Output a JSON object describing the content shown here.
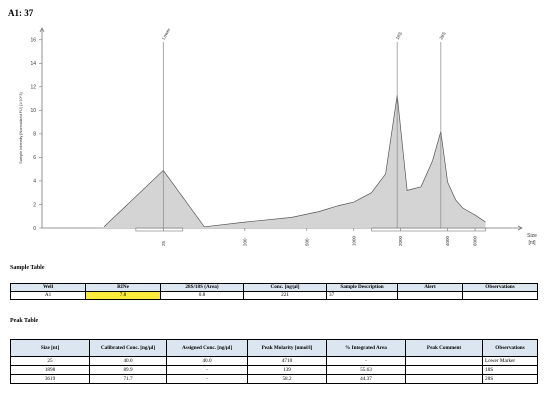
{
  "header": {
    "title": "A1: 37"
  },
  "chart_data": {
    "type": "line",
    "ylabel": "Sample Intensity [Normalized FU] (1/10^3)",
    "xlabel_line1": "Size",
    "xlabel_line2": "[nt]",
    "y_ticks": [
      "0",
      "2",
      "4",
      "6",
      "8",
      "10",
      "12",
      "14",
      "16"
    ],
    "ylim": [
      0,
      17
    ],
    "x_ticks": [
      "25",
      "200",
      "500",
      "1000",
      "2000",
      "4000",
      "6000"
    ],
    "peak_labels": [
      "Lower",
      "18S",
      "28S"
    ],
    "series": [
      {
        "x": [
          25,
          60,
          110,
          200,
          400,
          600,
          800,
          1000,
          1300,
          1600,
          1898,
          2200,
          2700,
          3200,
          3619,
          4000,
          4500,
          5000,
          6000,
          7000
        ],
        "y": [
          0.1,
          4.9,
          0.1,
          0.5,
          0.9,
          1.4,
          1.9,
          2.2,
          3.0,
          4.6,
          11.3,
          3.2,
          3.5,
          5.7,
          8.2,
          3.9,
          2.4,
          1.7,
          1.1,
          0.5
        ]
      }
    ],
    "grid": false
  },
  "sample_table": {
    "label": "Sample Table",
    "headers": [
      "Well",
      "RINe",
      "28S/18S (Area)",
      "Conc. [ng/µl]",
      "Sample Description",
      "Alert",
      "Observations"
    ],
    "rows": [
      [
        "A1",
        "7.8",
        "0.8",
        "221",
        "37",
        "",
        ""
      ]
    ]
  },
  "peak_table": {
    "label": "Peak Table",
    "headers": [
      "Size [nt]",
      "Calibrated Conc. [ng/µl]",
      "Assigned Conc. [ng/µl]",
      "Peak Molarity [nmol/l]",
      "% Integrated Area",
      "Peak Comment",
      "Observations"
    ],
    "rows": [
      [
        "25",
        "40.0",
        "40.0",
        "4710",
        "-",
        "",
        "Lower Marker"
      ],
      [
        "1898",
        "89.9",
        "-",
        "139",
        "55.63",
        "",
        "18S"
      ],
      [
        "3619",
        "71.7",
        "-",
        "58.2",
        "44.37",
        "",
        "28S"
      ]
    ]
  },
  "colors": {
    "trace_fill": "#d4d4d4",
    "trace_line": "#555555",
    "header_bg": "#dce6f1",
    "rin_highlight": "#ffeb3b"
  }
}
